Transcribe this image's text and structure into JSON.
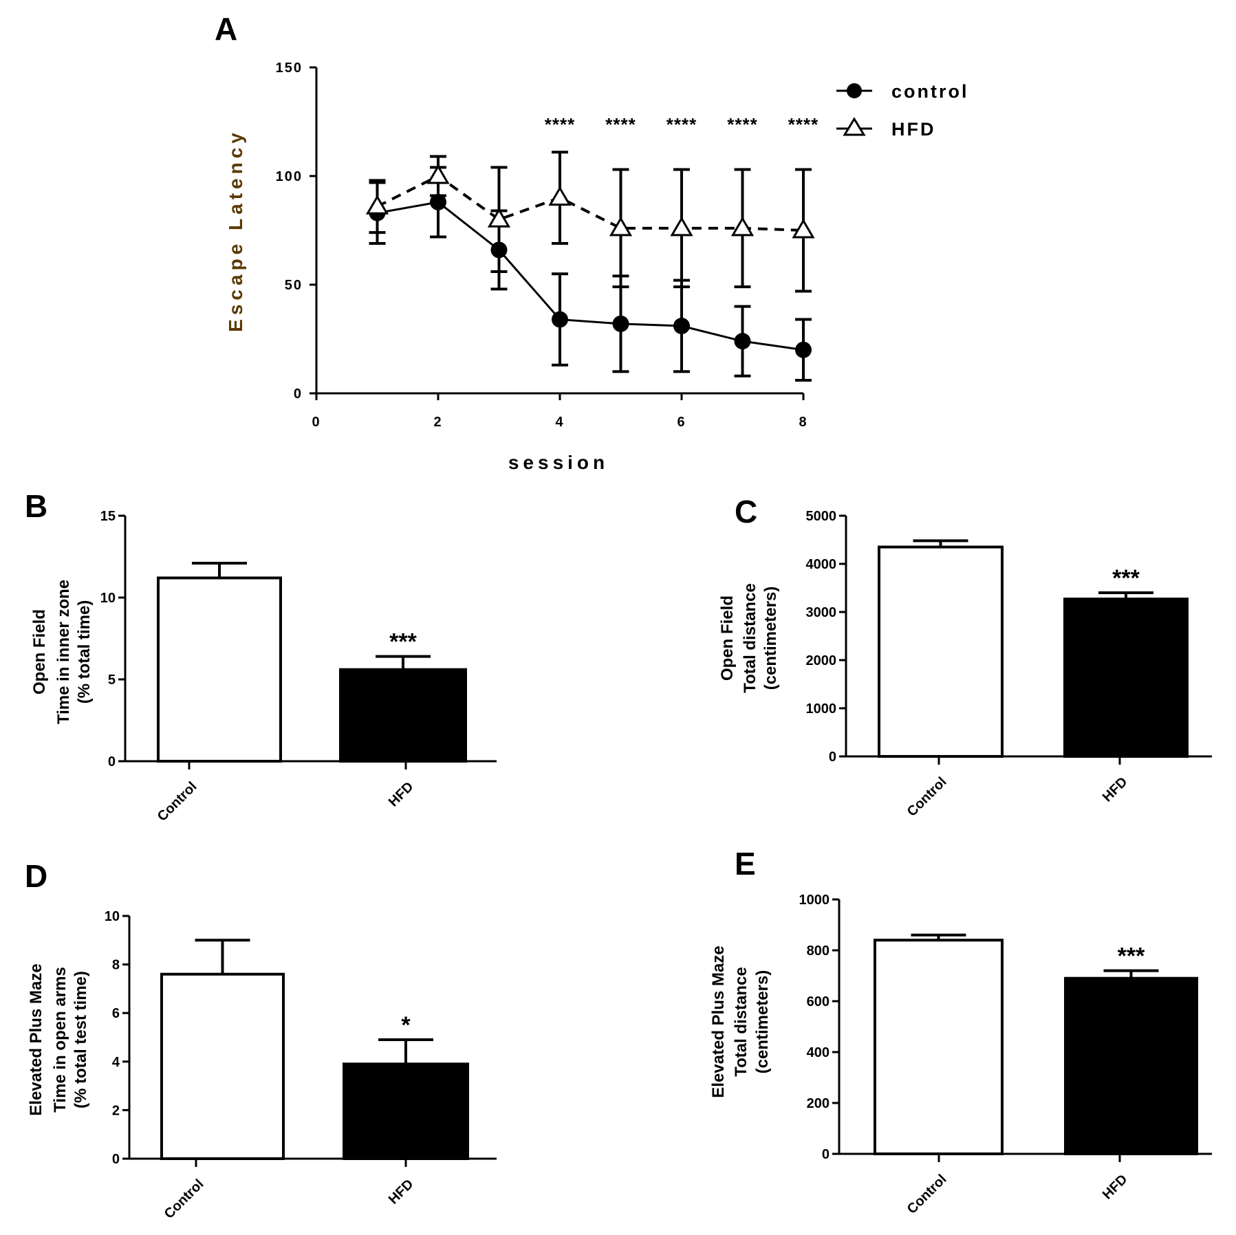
{
  "chart_data": [
    {
      "panel": "A",
      "type": "line",
      "title": "",
      "xlabel": "session",
      "ylabel": "Escape Latency",
      "xlim": [
        0,
        8
      ],
      "ylim": [
        0,
        150
      ],
      "xticks": [
        "0",
        "2",
        "4",
        "6",
        "8"
      ],
      "yticks": [
        "0",
        "50",
        "100",
        "150"
      ],
      "x": [
        1,
        2,
        3,
        4,
        5,
        6,
        7,
        8
      ],
      "series": [
        {
          "name": "control",
          "marker": "filled-circle",
          "line": "solid",
          "values": [
            83,
            88,
            66,
            34,
            32,
            31,
            24,
            20
          ],
          "errors": [
            14,
            16,
            18,
            21,
            22,
            21,
            16,
            14
          ]
        },
        {
          "name": "HFD",
          "marker": "open-triangle",
          "line": "dashed",
          "values": [
            86,
            100,
            80,
            90,
            76,
            76,
            76,
            75
          ],
          "errors": [
            12,
            9,
            24,
            21,
            27,
            27,
            27,
            28
          ]
        }
      ],
      "significance": [
        {
          "x": 4,
          "label": "****"
        },
        {
          "x": 5,
          "label": "****"
        },
        {
          "x": 6,
          "label": "****"
        },
        {
          "x": 7,
          "label": "****"
        },
        {
          "x": 8,
          "label": "****"
        }
      ],
      "legend": "top-right"
    },
    {
      "panel": "B",
      "type": "bar",
      "categories": [
        "Control",
        "HFD"
      ],
      "values": [
        11.2,
        5.6
      ],
      "errors": [
        0.9,
        0.8
      ],
      "significance": [
        "",
        "***"
      ],
      "ylabel": [
        "Open Field",
        "Time in inner zone",
        "(% total time)"
      ],
      "ylim": [
        0,
        15
      ],
      "yticks": [
        "0",
        "5",
        "10",
        "15"
      ]
    },
    {
      "panel": "C",
      "type": "bar",
      "categories": [
        "Control",
        "HFD"
      ],
      "values": [
        4350,
        3270
      ],
      "errors": [
        130,
        130
      ],
      "significance": [
        "",
        "***"
      ],
      "ylabel": [
        "Open Field",
        "Total distance",
        "(centimeters)"
      ],
      "ylim": [
        0,
        5000
      ],
      "yticks": [
        "0",
        "1000",
        "2000",
        "3000",
        "4000",
        "5000"
      ]
    },
    {
      "panel": "D",
      "type": "bar",
      "categories": [
        "Control",
        "HFD"
      ],
      "values": [
        7.6,
        3.9
      ],
      "errors": [
        1.4,
        1.0
      ],
      "significance": [
        "",
        "*"
      ],
      "ylabel": [
        "Elevated Plus Maze",
        "Time in open arms",
        "(% total test time)"
      ],
      "ylim": [
        0,
        10
      ],
      "yticks": [
        "0",
        "2",
        "4",
        "6",
        "8",
        "10"
      ]
    },
    {
      "panel": "E",
      "type": "bar",
      "categories": [
        "Control",
        "HFD"
      ],
      "values": [
        840,
        690
      ],
      "errors": [
        20,
        30
      ],
      "significance": [
        "",
        "***"
      ],
      "ylabel": [
        "Elevated Plus Maze",
        "Total distance",
        "(centimeters)"
      ],
      "ylim": [
        0,
        1000
      ],
      "yticks": [
        "0",
        "200",
        "400",
        "600",
        "800",
        "1000"
      ]
    }
  ],
  "colors": {
    "ink": "#000000",
    "control_fill": "#ffffff",
    "hfd_fill": "#000000",
    "ylabel_a": "#5a3a00"
  }
}
